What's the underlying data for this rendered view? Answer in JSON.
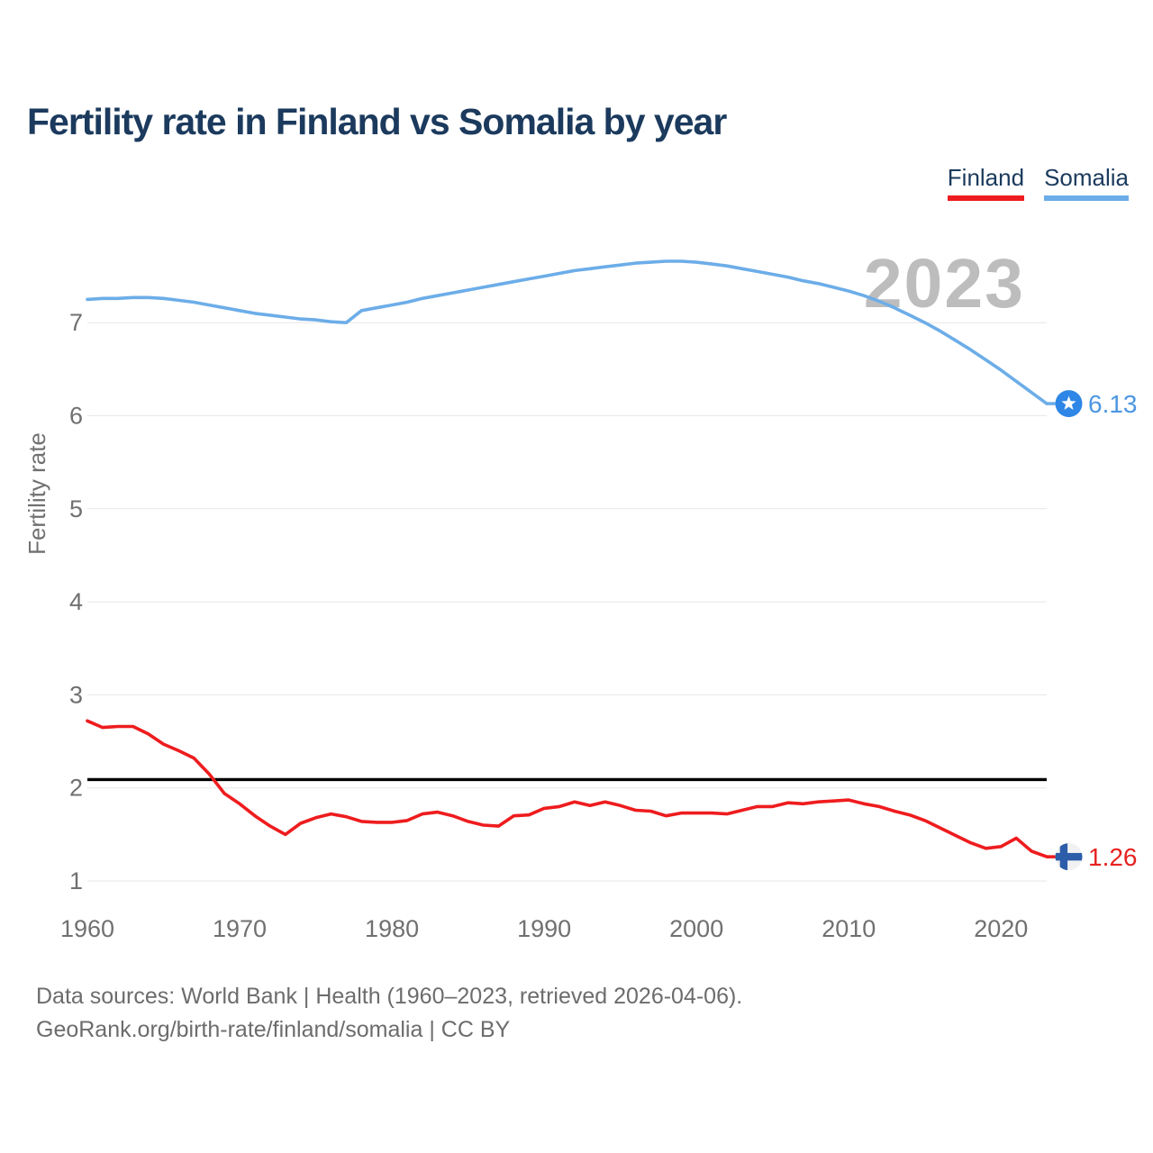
{
  "title": "Fertility rate in Finland vs Somalia by year",
  "legend": {
    "items": [
      {
        "label": "Finland",
        "color": "#ee1c1e"
      },
      {
        "label": "Somalia",
        "color": "#6cade8"
      }
    ]
  },
  "watermark": "2023",
  "footer": {
    "line1": "Data sources: World Bank | Health (1960–2023, retrieved 2026-04-06).",
    "line2": "GeoRank.org/birth-rate/finland/somalia | CC BY"
  },
  "chart_data": {
    "type": "line",
    "title": "Fertility rate in Finland vs Somalia by year",
    "ylabel": "Fertility rate",
    "xlabel": "",
    "grid": "horizontal",
    "legend_position": "top-right",
    "x_range": [
      1960,
      2023
    ],
    "ylim": [
      0.8,
      7.8
    ],
    "y_ticks": [
      1,
      2,
      3,
      4,
      5,
      6,
      7
    ],
    "x_ticks": [
      1960,
      1970,
      1980,
      1990,
      2000,
      2010,
      2020
    ],
    "reference_line": {
      "value": 2.09,
      "color": "#000000"
    },
    "years": [
      1960,
      1961,
      1962,
      1963,
      1964,
      1965,
      1966,
      1967,
      1968,
      1969,
      1970,
      1971,
      1972,
      1973,
      1974,
      1975,
      1976,
      1977,
      1978,
      1979,
      1980,
      1981,
      1982,
      1983,
      1984,
      1985,
      1986,
      1987,
      1988,
      1989,
      1990,
      1991,
      1992,
      1993,
      1994,
      1995,
      1996,
      1997,
      1998,
      1999,
      2000,
      2001,
      2002,
      2003,
      2004,
      2005,
      2006,
      2007,
      2008,
      2009,
      2010,
      2011,
      2012,
      2013,
      2014,
      2015,
      2016,
      2017,
      2018,
      2019,
      2020,
      2021,
      2022,
      2023
    ],
    "series": [
      {
        "name": "Finland",
        "color": "#ee1c1e",
        "end_value": 1.26,
        "end_label": "1.26",
        "end_label_color": "#e62220",
        "flag": "finland",
        "values": [
          2.72,
          2.65,
          2.66,
          2.66,
          2.58,
          2.47,
          2.4,
          2.32,
          2.15,
          1.94,
          1.83,
          1.7,
          1.59,
          1.5,
          1.62,
          1.68,
          1.72,
          1.69,
          1.64,
          1.63,
          1.63,
          1.65,
          1.72,
          1.74,
          1.7,
          1.64,
          1.6,
          1.59,
          1.7,
          1.71,
          1.78,
          1.8,
          1.85,
          1.81,
          1.85,
          1.81,
          1.76,
          1.75,
          1.7,
          1.73,
          1.73,
          1.73,
          1.72,
          1.76,
          1.8,
          1.8,
          1.84,
          1.83,
          1.85,
          1.86,
          1.87,
          1.83,
          1.8,
          1.75,
          1.71,
          1.65,
          1.57,
          1.49,
          1.41,
          1.35,
          1.37,
          1.46,
          1.32,
          1.26
        ]
      },
      {
        "name": "Somalia",
        "color": "#6cade8",
        "end_value": 6.13,
        "end_label": "6.13",
        "end_label_color": "#4d97e2",
        "flag": "somalia",
        "values": [
          7.25,
          7.26,
          7.26,
          7.27,
          7.27,
          7.26,
          7.24,
          7.22,
          7.19,
          7.16,
          7.13,
          7.1,
          7.08,
          7.06,
          7.04,
          7.03,
          7.01,
          7.0,
          7.13,
          7.16,
          7.19,
          7.22,
          7.26,
          7.29,
          7.32,
          7.35,
          7.38,
          7.41,
          7.44,
          7.47,
          7.5,
          7.53,
          7.56,
          7.58,
          7.6,
          7.62,
          7.64,
          7.65,
          7.66,
          7.66,
          7.65,
          7.63,
          7.61,
          7.58,
          7.55,
          7.52,
          7.49,
          7.45,
          7.42,
          7.38,
          7.34,
          7.29,
          7.23,
          7.16,
          7.08,
          7.0,
          6.91,
          6.81,
          6.71,
          6.6,
          6.49,
          6.37,
          6.25,
          6.13
        ]
      }
    ]
  }
}
